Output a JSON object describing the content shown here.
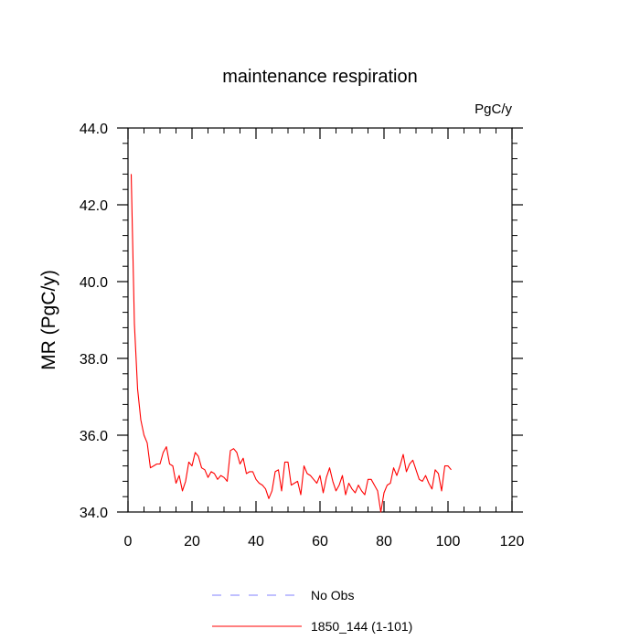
{
  "chart_data": {
    "type": "line",
    "title": "maintenance respiration",
    "units_label": "PgC/y",
    "ylabel": "MR  (PgC/y)",
    "xlabel": "",
    "xlim": [
      0,
      120
    ],
    "ylim": [
      34.0,
      44.0
    ],
    "x_ticks": [
      0,
      20,
      40,
      60,
      80,
      100,
      120
    ],
    "x_tick_labels": [
      "0",
      "20",
      "40",
      "60",
      "80",
      "100",
      "120"
    ],
    "y_ticks": [
      34.0,
      36.0,
      38.0,
      40.0,
      42.0,
      44.0
    ],
    "y_tick_labels": [
      "34.0",
      "36.0",
      "38.0",
      "40.0",
      "42.0",
      "44.0"
    ],
    "grid": false,
    "legend_position": "bottom",
    "series": [
      {
        "name": "1850_144 (1-101)",
        "color": "#ff0000",
        "dash": "solid",
        "x": [
          1,
          2,
          3,
          4,
          5,
          6,
          7,
          8,
          9,
          10,
          11,
          12,
          13,
          14,
          15,
          16,
          17,
          18,
          19,
          20,
          21,
          22,
          23,
          24,
          25,
          26,
          27,
          28,
          29,
          30,
          31,
          32,
          33,
          34,
          35,
          36,
          37,
          38,
          39,
          40,
          41,
          42,
          43,
          44,
          45,
          46,
          47,
          48,
          49,
          50,
          51,
          52,
          53,
          54,
          55,
          56,
          57,
          58,
          59,
          60,
          61,
          62,
          63,
          64,
          65,
          66,
          67,
          68,
          69,
          70,
          71,
          72,
          73,
          74,
          75,
          76,
          77,
          78,
          79,
          80,
          81,
          82,
          83,
          84,
          85,
          86,
          87,
          88,
          89,
          90,
          91,
          92,
          93,
          94,
          95,
          96,
          97,
          98,
          99,
          100,
          101
        ],
        "y": [
          42.8,
          38.9,
          37.2,
          36.4,
          36.0,
          35.8,
          35.15,
          35.2,
          35.25,
          35.25,
          35.55,
          35.7,
          35.25,
          35.2,
          34.75,
          34.95,
          34.55,
          34.8,
          35.3,
          35.2,
          35.55,
          35.45,
          35.15,
          35.1,
          34.9,
          35.05,
          35.0,
          34.85,
          34.95,
          34.9,
          34.8,
          35.6,
          35.65,
          35.55,
          35.25,
          35.4,
          35.0,
          35.05,
          35.05,
          34.85,
          34.75,
          34.7,
          34.6,
          34.35,
          34.55,
          35.05,
          35.1,
          34.55,
          35.3,
          35.3,
          34.7,
          34.75,
          34.8,
          34.45,
          35.2,
          35.0,
          34.95,
          34.85,
          34.75,
          34.95,
          34.5,
          34.9,
          35.15,
          34.8,
          34.55,
          34.7,
          34.95,
          34.45,
          34.75,
          34.6,
          34.5,
          34.7,
          34.55,
          34.45,
          34.85,
          34.85,
          34.7,
          34.55,
          34.0,
          34.5,
          34.7,
          34.75,
          35.15,
          34.95,
          35.2,
          35.5,
          35.05,
          35.25,
          35.35,
          35.1,
          34.85,
          34.8,
          34.95,
          34.75,
          34.6,
          35.1,
          35.0,
          34.55,
          35.2,
          35.2,
          35.1
        ]
      }
    ],
    "legend": [
      {
        "label": "No Obs",
        "color": "#8080ff",
        "dash": "dashed"
      },
      {
        "label": "1850_144 (1-101)",
        "color": "#ff0000",
        "dash": "solid"
      }
    ]
  }
}
